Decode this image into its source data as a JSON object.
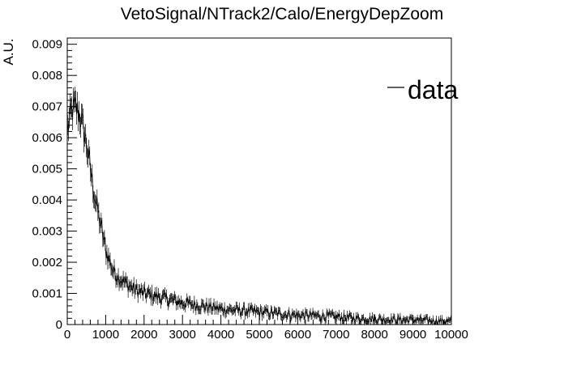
{
  "chart_data": {
    "type": "line",
    "title": "VetoSignal/NTrack2/Calo/EnergyDepZoom",
    "xlabel": "",
    "ylabel": "A.U.",
    "xlim": [
      0,
      10000
    ],
    "ylim": [
      0,
      0.0092
    ],
    "x_ticks": [
      0,
      1000,
      2000,
      3000,
      4000,
      5000,
      6000,
      7000,
      8000,
      9000,
      10000
    ],
    "x_tick_labels": [
      "0",
      "1000",
      "2000",
      "3000",
      "4000",
      "5000",
      "6000",
      "7000",
      "8000",
      "9000",
      "10000"
    ],
    "y_ticks": [
      0,
      0.001,
      0.002,
      0.003,
      0.004,
      0.005,
      0.006,
      0.007,
      0.008,
      0.009
    ],
    "y_tick_labels": [
      "0",
      "0.001",
      "0.002",
      "0.003",
      "0.004",
      "0.005",
      "0.006",
      "0.007",
      "0.008",
      "0.009"
    ],
    "legend_position": "top-right",
    "grid": false,
    "series": [
      {
        "name": "data",
        "color": "#000000",
        "x": [
          0,
          100,
          200,
          300,
          400,
          500,
          600,
          700,
          800,
          900,
          1000,
          1200,
          1400,
          1600,
          1800,
          2000,
          2500,
          3000,
          3500,
          4000,
          4500,
          5000,
          5500,
          6000,
          6500,
          7000,
          7500,
          8000,
          8500,
          9000,
          9500,
          10000
        ],
        "y": [
          0.0062,
          0.0068,
          0.007,
          0.0068,
          0.0064,
          0.0058,
          0.005,
          0.0042,
          0.0036,
          0.003,
          0.0024,
          0.0017,
          0.00145,
          0.00125,
          0.0011,
          0.001,
          0.00085,
          0.0007,
          0.0006,
          0.0005,
          0.00045,
          0.0004,
          0.00035,
          0.0003,
          0.00028,
          0.00025,
          0.0002,
          0.00018,
          0.00016,
          0.00015,
          0.00012,
          0.0001
        ]
      }
    ]
  }
}
